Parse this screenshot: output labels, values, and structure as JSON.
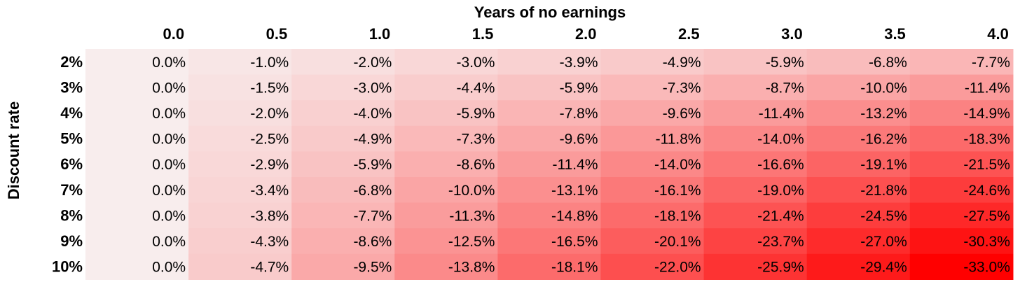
{
  "chart_data": {
    "type": "heatmap",
    "title": "Years of no earnings",
    "xlabel": "Years of no earnings",
    "ylabel": "Discount rate",
    "x_categories": [
      "0.0",
      "0.5",
      "1.0",
      "1.5",
      "2.0",
      "2.5",
      "3.0",
      "3.5",
      "4.0"
    ],
    "y_categories": [
      "2%",
      "3%",
      "4%",
      "5%",
      "6%",
      "7%",
      "8%",
      "9%",
      "10%"
    ],
    "values": [
      [
        0.0,
        -1.0,
        -2.0,
        -3.0,
        -3.9,
        -4.9,
        -5.9,
        -6.8,
        -7.7
      ],
      [
        0.0,
        -1.5,
        -3.0,
        -4.4,
        -5.9,
        -7.3,
        -8.7,
        -10.0,
        -11.4
      ],
      [
        0.0,
        -2.0,
        -4.0,
        -5.9,
        -7.8,
        -9.6,
        -11.4,
        -13.2,
        -14.9
      ],
      [
        0.0,
        -2.5,
        -4.9,
        -7.3,
        -9.6,
        -11.8,
        -14.0,
        -16.2,
        -18.3
      ],
      [
        0.0,
        -2.9,
        -5.9,
        -8.6,
        -11.4,
        -14.0,
        -16.6,
        -19.1,
        -21.5
      ],
      [
        0.0,
        -3.4,
        -6.8,
        -10.0,
        -13.1,
        -16.1,
        -19.0,
        -21.8,
        -24.6
      ],
      [
        0.0,
        -3.8,
        -7.7,
        -11.3,
        -14.8,
        -18.1,
        -21.4,
        -24.5,
        -27.5
      ],
      [
        0.0,
        -4.3,
        -8.6,
        -12.5,
        -16.5,
        -20.1,
        -23.7,
        -27.0,
        -30.3
      ],
      [
        0.0,
        -4.7,
        -9.5,
        -13.8,
        -18.1,
        -22.0,
        -25.9,
        -29.4,
        -33.0
      ]
    ],
    "value_format": "percent",
    "color_scale": {
      "min_value": 0.0,
      "max_value": -33.0,
      "min_color": "#f8eded",
      "max_color": "#ff0000"
    },
    "grid": false,
    "legend": "none"
  }
}
